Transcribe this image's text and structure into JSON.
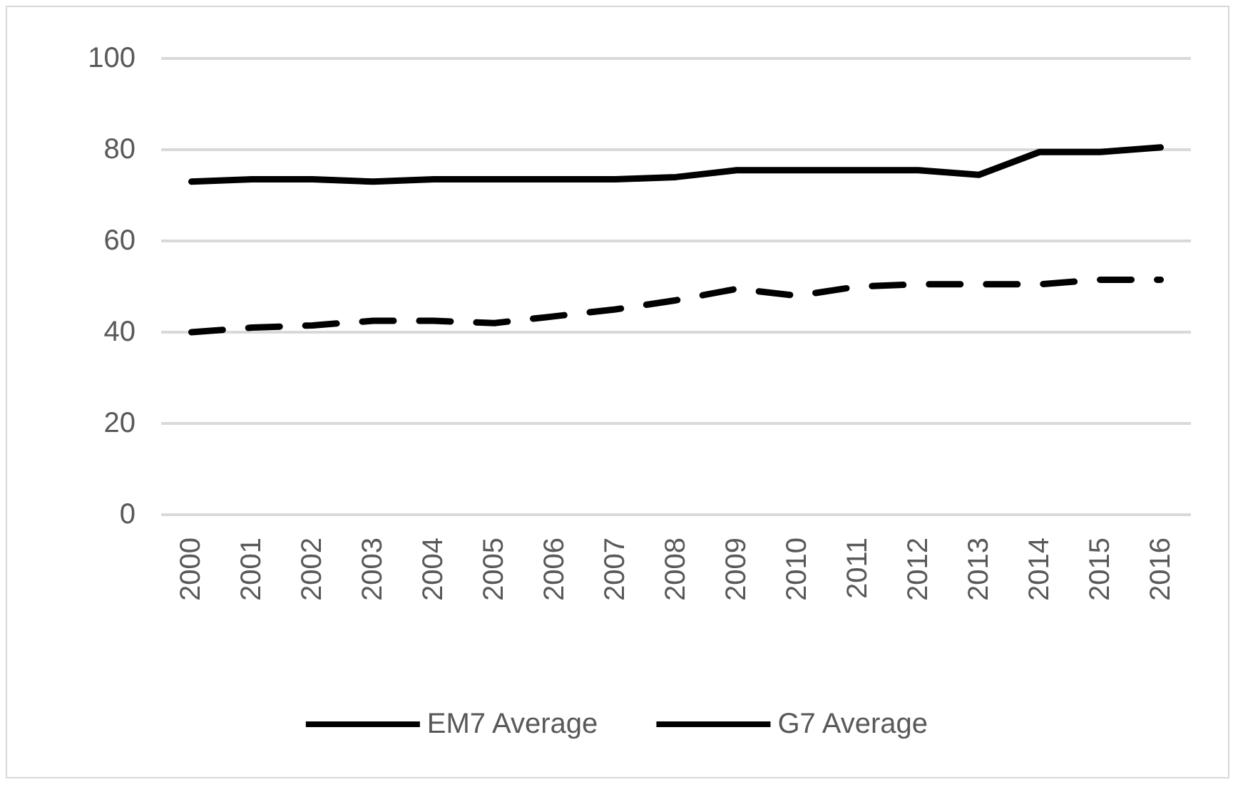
{
  "chart_data": {
    "type": "line",
    "categories": [
      "2000",
      "2001",
      "2002",
      "2003",
      "2004",
      "2005",
      "2006",
      "2007",
      "2008",
      "2009",
      "2010",
      "2011",
      "2012",
      "2013",
      "2014",
      "2015",
      "2016"
    ],
    "series": [
      {
        "name": "EM7 Average",
        "color": "#000000",
        "line_style": "dashed",
        "values": [
          40,
          41,
          41.5,
          42.5,
          42.5,
          42,
          43.5,
          45,
          47,
          49.5,
          48,
          50,
          50.5,
          50.5,
          50.5,
          51.5,
          51.5
        ]
      },
      {
        "name": "G7 Average",
        "color": "#000000",
        "line_style": "solid",
        "values": [
          73,
          73.5,
          73.5,
          73,
          73.5,
          73.5,
          73.5,
          73.5,
          74,
          75.5,
          75.5,
          75.5,
          75.5,
          74.5,
          79.5,
          79.5,
          80.5
        ]
      }
    ],
    "ylim": [
      0,
      100
    ],
    "yticks": [
      0,
      20,
      40,
      60,
      80,
      100
    ],
    "grid": "y",
    "legend": "bottom",
    "marker": "none"
  }
}
